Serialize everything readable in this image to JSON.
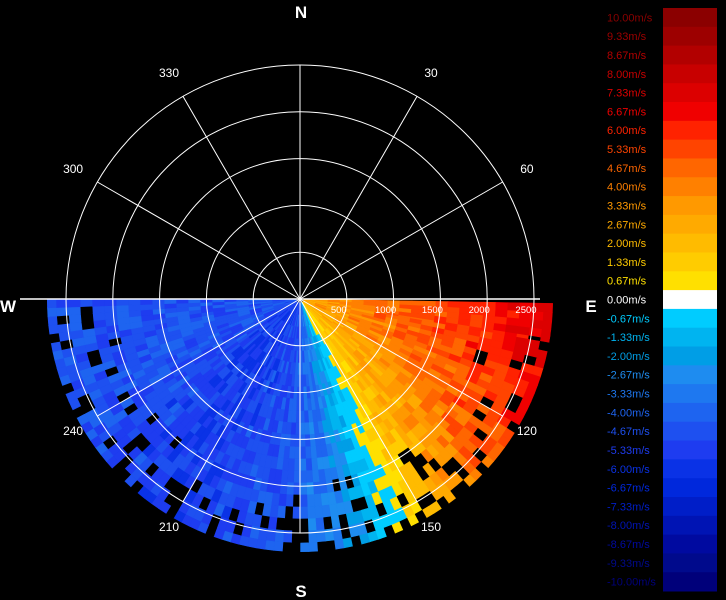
{
  "chart_data": {
    "type": "polar_radar_sector",
    "title": "",
    "compass": {
      "north": "N",
      "south": "S",
      "east": "E",
      "west": "W"
    },
    "bearing_labels": [
      "30",
      "60",
      "120",
      "150",
      "210",
      "240",
      "300",
      "330"
    ],
    "range_labels": [
      "500",
      "1000",
      "1500",
      "2000",
      "2500"
    ],
    "range_max": 2700,
    "range_rings": [
      500,
      1000,
      1500,
      2000,
      2500
    ],
    "scan_sector": {
      "from_deg": 90,
      "to_deg": 270,
      "extended_to_deg": 117
    },
    "colorbar": {
      "min": -10.0,
      "max": 10.0,
      "levels": [
        {
          "label": "10.00m/s",
          "color": "#8b0000"
        },
        {
          "label": "9.33m/s",
          "color": "#9d0000"
        },
        {
          "label": "8.67m/s",
          "color": "#b20000"
        },
        {
          "label": "8.00m/s",
          "color": "#c80000"
        },
        {
          "label": "7.33m/s",
          "color": "#dc0000"
        },
        {
          "label": "6.67m/s",
          "color": "#f00000"
        },
        {
          "label": "6.00m/s",
          "color": "#ff2200"
        },
        {
          "label": "5.33m/s",
          "color": "#ff4400"
        },
        {
          "label": "4.67m/s",
          "color": "#ff6600"
        },
        {
          "label": "4.00m/s",
          "color": "#ff8000"
        },
        {
          "label": "3.33m/s",
          "color": "#ff9900"
        },
        {
          "label": "2.67m/s",
          "color": "#ffaa00"
        },
        {
          "label": "2.00m/s",
          "color": "#ffbb00"
        },
        {
          "label": "1.33m/s",
          "color": "#ffcc00"
        },
        {
          "label": "0.67m/s",
          "color": "#ffe000"
        },
        {
          "label": "0.00m/s",
          "color": "#ffffff"
        },
        {
          "label": "-0.67m/s",
          "color": "#00ccff"
        },
        {
          "label": "-1.33m/s",
          "color": "#00b4f0"
        },
        {
          "label": "-2.00m/s",
          "color": "#009ee6"
        },
        {
          "label": "-2.67m/s",
          "color": "#1e8cf0"
        },
        {
          "label": "-3.33m/s",
          "color": "#1e78f0"
        },
        {
          "label": "-4.00m/s",
          "color": "#1e64f0"
        },
        {
          "label": "-4.67m/s",
          "color": "#1e50f0"
        },
        {
          "label": "-5.33m/s",
          "color": "#1e3cf0"
        },
        {
          "label": "-6.00m/s",
          "color": "#0a32e6"
        },
        {
          "label": "-6.67m/s",
          "color": "#0028dc"
        },
        {
          "label": "-7.33m/s",
          "color": "#001ec8"
        },
        {
          "label": "-8.00m/s",
          "color": "#0014b4"
        },
        {
          "label": "-8.67m/s",
          "color": "#000aa0"
        },
        {
          "label": "-9.33m/s",
          "color": "#000a8c"
        },
        {
          "label": "-10.00m/s",
          "color": "#00007a"
        }
      ]
    },
    "velocity_field": {
      "description_note": "Radial velocity (m/s) by azimuth and range estimated from image",
      "azimuth_deg": [
        100,
        110,
        120,
        130,
        140,
        150,
        160,
        170,
        180,
        190,
        200,
        210,
        220,
        230,
        240,
        250,
        260,
        270
      ],
      "near_range": [
        3.0,
        3.0,
        2.5,
        2.0,
        1.5,
        0.5,
        -1.5,
        -3.5,
        -4.5,
        -5.0,
        -5.0,
        -5.5,
        -5.5,
        -5.0,
        -5.0,
        -4.5,
        -4.5,
        -4.5
      ],
      "far_range": [
        7.5,
        6.5,
        6.0,
        5.0,
        3.5,
        1.5,
        -1.0,
        -3.0,
        -4.0,
        -4.5,
        -5.0,
        -5.5,
        -5.0,
        -5.0,
        -4.5,
        -4.5,
        -4.5,
        -4.5
      ]
    }
  }
}
